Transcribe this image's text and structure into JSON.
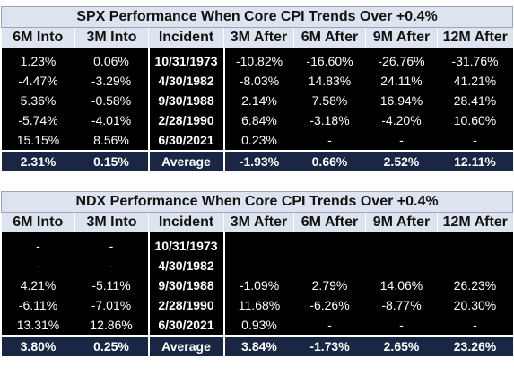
{
  "tables": [
    {
      "title": "SPX Performance When Core CPI Trends Over +0.4%",
      "headers": [
        "6M Into",
        "3M Into",
        "Incident",
        "3M After",
        "6M After",
        "9M After",
        "12M After"
      ],
      "rows": [
        [
          "1.23%",
          "0.06%",
          "10/31/1973",
          "-10.82%",
          "-16.60%",
          "-26.76%",
          "-31.76%"
        ],
        [
          "-4.47%",
          "-3.29%",
          "4/30/1982",
          "-8.03%",
          "14.83%",
          "24.11%",
          "41.21%"
        ],
        [
          "5.36%",
          "-0.58%",
          "9/30/1988",
          "2.14%",
          "7.58%",
          "16.94%",
          "28.41%"
        ],
        [
          "-5.74%",
          "-4.01%",
          "2/28/1990",
          "6.84%",
          "-3.18%",
          "-4.20%",
          "10.60%"
        ],
        [
          "15.15%",
          "8.56%",
          "6/30/2021",
          "0.23%",
          "-",
          "-",
          "-"
        ]
      ],
      "average": [
        "2.31%",
        "0.15%",
        "Average",
        "-1.93%",
        "0.66%",
        "2.52%",
        "12.11%"
      ]
    },
    {
      "title": "NDX Performance When Core CPI Trends Over +0.4%",
      "headers": [
        "6M Into",
        "3M Into",
        "Incident",
        "3M After",
        "6M After",
        "9M After",
        "12M After"
      ],
      "rows": [
        [
          "-",
          "-",
          "10/31/1973",
          "",
          "",
          "",
          ""
        ],
        [
          "-",
          "-",
          "4/30/1982",
          "",
          "",
          "",
          ""
        ],
        [
          "4.21%",
          "-5.11%",
          "9/30/1988",
          "-1.09%",
          "2.79%",
          "14.06%",
          "26.23%"
        ],
        [
          "-6.11%",
          "-7.01%",
          "2/28/1990",
          "11.68%",
          "-6.26%",
          "-8.77%",
          "20.30%"
        ],
        [
          "13.31%",
          "12.86%",
          "6/30/2021",
          "0.93%",
          "-",
          "-",
          "-"
        ]
      ],
      "average": [
        "3.80%",
        "0.25%",
        "Average",
        "3.84%",
        "-1.73%",
        "2.65%",
        "23.26%"
      ]
    }
  ]
}
